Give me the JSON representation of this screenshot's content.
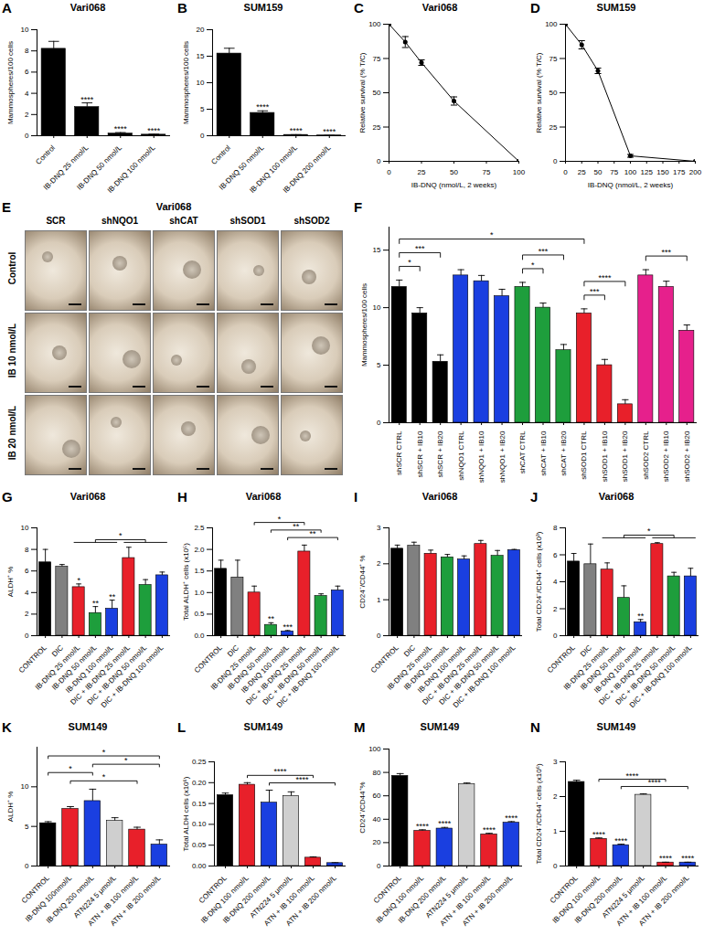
{
  "chart_data": [
    {
      "panel": "A",
      "type": "bar",
      "title": "Vari068",
      "y_label": "Mammospheres/100 cells",
      "categories": [
        "Control",
        "IB-DNQ 25 nmol/L",
        "IB-DNQ 50 nmol/L",
        "IB-DNQ 100 nmol/L"
      ],
      "values": [
        8.2,
        2.7,
        0.2,
        0.1
      ],
      "errors": [
        0.7,
        0.4,
        0.1,
        0.05
      ],
      "colors": [
        "#000000",
        "#000000",
        "#000000",
        "#000000"
      ],
      "stars": [
        null,
        "****",
        "****",
        "****"
      ],
      "ylim": [
        0,
        10
      ],
      "yticks": [
        0,
        2,
        4,
        6,
        8,
        10
      ]
    },
    {
      "panel": "B",
      "type": "bar",
      "title": "SUM159",
      "y_label": "Mammospheres/100 cells",
      "categories": [
        "Control",
        "IB-DNQ 50 nmol/L",
        "IB-DNQ 100 nmol/L",
        "IB-DNQ 200 nmol/L"
      ],
      "values": [
        15.5,
        4.3,
        0.15,
        0.05
      ],
      "errors": [
        1.0,
        0.4,
        0.05,
        0.03
      ],
      "colors": [
        "#000000",
        "#000000",
        "#000000",
        "#000000"
      ],
      "stars": [
        null,
        "****",
        "****",
        "****"
      ],
      "ylim": [
        0,
        20
      ],
      "yticks": [
        0,
        5,
        10,
        15,
        20
      ]
    },
    {
      "panel": "C",
      "type": "line",
      "title": "Vari068",
      "x_label": "IB-DNQ (nmol/L, 2 weeks)",
      "y_label": "Relative survival (% T/C)",
      "x": [
        0,
        12.5,
        25,
        50,
        100
      ],
      "values": [
        100,
        87,
        72,
        44,
        0
      ],
      "errors": [
        0,
        4,
        2,
        3,
        0
      ],
      "color": "#000000",
      "marker": "circle",
      "xlim": [
        0,
        100
      ],
      "xticks": [
        0,
        25,
        50,
        75,
        100
      ],
      "ylim": [
        0,
        100
      ],
      "yticks": [
        0,
        25,
        50,
        75,
        100
      ]
    },
    {
      "panel": "D",
      "type": "line",
      "title": "SUM159",
      "x_label": "IB-DNQ (nmol/L, 2 weeks)",
      "y_label": "Relative survival (% T/C)",
      "x": [
        0,
        25,
        50,
        100,
        200
      ],
      "values": [
        100,
        85,
        66,
        4,
        0
      ],
      "errors": [
        0,
        3,
        2,
        1,
        0
      ],
      "color": "#000000",
      "marker": "circle",
      "xlim": [
        0,
        200
      ],
      "xticks": [
        0,
        25,
        50,
        75,
        100,
        125,
        150,
        175,
        200
      ],
      "ylim": [
        0,
        100
      ],
      "yticks": [
        0,
        25,
        50,
        75,
        100
      ]
    },
    {
      "panel": "F",
      "type": "bar",
      "y_label": "Mammospheres/100 cells",
      "categories": [
        "shSCR CTRL",
        "shSCR + IB10",
        "shSCR + IB20",
        "shNQO1 CTRL",
        "shNQO1 + IB10",
        "shNQO1 + IB20",
        "shCAT CTRL",
        "shCAT + IB10",
        "shCAT + IB20",
        "shSOD1 CTRL",
        "shSOD1 + IB10",
        "shSOD1 + IB20",
        "shSOD2 CTRL",
        "shSOD2 + IB10",
        "shSOD2 + IB20"
      ],
      "values": [
        11.8,
        9.5,
        5.3,
        12.8,
        12.3,
        11.0,
        11.8,
        10.0,
        6.3,
        9.5,
        5.0,
        1.6,
        12.8,
        11.8,
        8.0
      ],
      "errors": [
        0.6,
        0.5,
        0.6,
        0.5,
        0.5,
        0.6,
        0.4,
        0.4,
        0.5,
        0.4,
        0.5,
        0.4,
        0.5,
        0.5,
        0.5
      ],
      "colors": [
        "#000000",
        "#000000",
        "#000000",
        "#1a3fe0",
        "#1a3fe0",
        "#1a3fe0",
        "#1e9e3c",
        "#1e9e3c",
        "#1e9e3c",
        "#e8202a",
        "#e8202a",
        "#e8202a",
        "#e6208c",
        "#e6208c",
        "#e6208c"
      ],
      "brackets": [
        {
          "from": "shSCR CTRL",
          "to": "shSCR + IB10",
          "label": "*"
        },
        {
          "from": "shSCR CTRL",
          "to": "shSCR + IB20",
          "label": "***"
        },
        {
          "from": "shCAT CTRL",
          "to": "shCAT + IB10",
          "label": "*"
        },
        {
          "from": "shCAT CTRL",
          "to": "shCAT + IB20",
          "label": "***"
        },
        {
          "from": "shSOD1 CTRL",
          "to": "shSOD1 + IB10",
          "label": "***"
        },
        {
          "from": "shSOD1 CTRL",
          "to": "shSOD1 + IB20",
          "label": "****"
        },
        {
          "from": "shSOD2 CTRL",
          "to": "shSOD2 + IB20",
          "label": "***"
        },
        {
          "from": "shSCR CTRL",
          "to": "shSOD1 CTRL",
          "label": "*"
        }
      ],
      "ylim": [
        0,
        17
      ],
      "yticks": [
        0,
        5,
        10,
        15
      ]
    },
    {
      "panel": "G",
      "type": "bar",
      "title": "Vari068",
      "y_label": "ALDH⁺ %",
      "categories": [
        "CONTROL",
        "DIC",
        "IB-DNQ 25 nmol/L",
        "IB-DNQ 50 nmol/L",
        "IB-DNQ 100 nmol/L",
        "DIC + IB-DNQ 25 nmol/L",
        "DIC + IB-DNQ 50 nmol/L",
        "DIC + IB-DNQ 100 nmol/L"
      ],
      "values": [
        6.8,
        6.4,
        4.5,
        2.1,
        2.5,
        7.2,
        4.7,
        5.6
      ],
      "errors": [
        1.2,
        0.2,
        0.3,
        0.6,
        0.8,
        1.0,
        0.5,
        0.3
      ],
      "colors": [
        "#000000",
        "#808080",
        "#e8202a",
        "#1e9e3c",
        "#1a3fe0",
        "#e8202a",
        "#1e9e3c",
        "#1a3fe0"
      ],
      "stars": [
        null,
        null,
        "*",
        "**",
        "**",
        null,
        null,
        null
      ],
      "brackets": [
        {
          "from": [
            "IB-DNQ 25 nmol/L",
            "IB-DNQ 50 nmol/L",
            "IB-DNQ 100 nmol/L"
          ],
          "to": [
            "DIC + IB-DNQ 25 nmol/L",
            "DIC + IB-DNQ 50 nmol/L",
            "DIC + IB-DNQ 100 nmol/L"
          ],
          "label": "*"
        }
      ],
      "ylim": [
        0,
        10
      ],
      "yticks": [
        0,
        2,
        4,
        6,
        8,
        10
      ]
    },
    {
      "panel": "H",
      "type": "bar",
      "title": "Vari068",
      "y_label": "Total ALDH⁺ cells (x10⁵)",
      "categories": [
        "CONTROL",
        "DIC",
        "IB-DNQ 25 nmol/L",
        "IB-DNQ 50 nmol/L",
        "IB-DNQ 100 nmol/L",
        "DIC + IB-DNQ 25 nmol/L",
        "DIC + IB-DNQ 50 nmol/L",
        "DIC + IB-DNQ 100 nmol/L"
      ],
      "values": [
        1.55,
        1.35,
        1.0,
        0.25,
        0.1,
        1.95,
        0.92,
        1.05
      ],
      "errors": [
        0.2,
        0.4,
        0.15,
        0.05,
        0.02,
        0.15,
        0.05,
        0.1
      ],
      "colors": [
        "#000000",
        "#808080",
        "#e8202a",
        "#1e9e3c",
        "#1a3fe0",
        "#e8202a",
        "#1e9e3c",
        "#1a3fe0"
      ],
      "stars": [
        null,
        null,
        null,
        "**",
        "***",
        null,
        null,
        null
      ],
      "brackets": [
        {
          "from": "IB-DNQ 100 nmol/L",
          "to": "DIC + IB-DNQ 100 nmol/L",
          "label": "**"
        },
        {
          "from": "IB-DNQ 50 nmol/L",
          "to": "DIC + IB-DNQ 50 nmol/L",
          "label": "**"
        },
        {
          "from": "IB-DNQ 25 nmol/L",
          "to": "DIC + IB-DNQ 25 nmol/L",
          "label": "*"
        }
      ],
      "ylim": [
        0,
        2.5
      ],
      "yticks": [
        {
          "value": 0,
          "label": "0.0"
        },
        0.5,
        {
          "value": 1,
          "label": "1.0"
        },
        1.5,
        {
          "value": 2,
          "label": "2.0"
        },
        2.5
      ]
    },
    {
      "panel": "I",
      "type": "bar",
      "title": "Vari068",
      "y_label": "CD24⁻/CD44⁺ %",
      "categories": [
        "CONTROL",
        "DIC",
        "IB-DNQ 25 nmol/L",
        "IB-DNQ 50 nmol/L",
        "IB-DNQ 100 nmol/L",
        "DIC + IB-DNQ 25 nmol/L",
        "DIC + IB-DNQ 50 nmol/L",
        "DIC + IB-DNQ 100 nmol/L"
      ],
      "values": [
        2.42,
        2.5,
        2.28,
        2.18,
        2.12,
        2.55,
        2.22,
        2.38
      ],
      "errors": [
        0.1,
        0.1,
        0.1,
        0.08,
        0.1,
        0.1,
        0.15,
        0.02
      ],
      "colors": [
        "#000000",
        "#808080",
        "#e8202a",
        "#1e9e3c",
        "#1a3fe0",
        "#e8202a",
        "#1e9e3c",
        "#1a3fe0"
      ],
      "ylim": [
        0,
        3
      ],
      "yticks": [
        0,
        1,
        2,
        3
      ]
    },
    {
      "panel": "J",
      "type": "bar",
      "title": "Vari068",
      "y_label": "Total CD24⁻/CD44⁺ cells (x10³)",
      "categories": [
        "CONTROL",
        "DIC",
        "IB-DNQ 25 nmol/L",
        "IB-DNQ 50 nmol/L",
        "IB-DNQ 100 nmol/L",
        "DIC + IB-DNQ 25 nmol/L",
        "DIC + IB-DNQ 50 nmol/L",
        "DIC + IB-DNQ 100 nmol/L"
      ],
      "values": [
        5.5,
        5.3,
        4.9,
        2.8,
        1.0,
        6.8,
        4.4,
        4.4
      ],
      "errors": [
        0.6,
        1.5,
        0.5,
        0.9,
        0.2,
        0.1,
        0.3,
        0.6
      ],
      "colors": [
        "#000000",
        "#808080",
        "#e8202a",
        "#1e9e3c",
        "#1a3fe0",
        "#e8202a",
        "#1e9e3c",
        "#1a3fe0"
      ],
      "stars": [
        null,
        null,
        null,
        null,
        "**",
        null,
        null,
        null
      ],
      "brackets": [
        {
          "from": [
            "IB-DNQ 25 nmol/L",
            "IB-DNQ 50 nmol/L",
            "IB-DNQ 100 nmol/L"
          ],
          "to": [
            "DIC + IB-DNQ 25 nmol/L",
            "DIC + IB-DNQ 50 nmol/L",
            "DIC + IB-DNQ 100 nmol/L"
          ],
          "label": "*"
        }
      ],
      "ylim": [
        0,
        8
      ],
      "yticks": [
        0,
        2,
        4,
        6,
        8
      ]
    },
    {
      "panel": "K",
      "type": "bar",
      "title": "SUM149",
      "y_label": "ALDH⁺ %",
      "categories": [
        "CONTROL",
        "IB-DNQ 100nmol/L",
        "IB-DNQ 200 nmol/L",
        "ATN224 5 μmol/L",
        "ATN + IB 100 nmol/L",
        "ATN + IB 200 nmol/L"
      ],
      "values": [
        5.4,
        7.2,
        8.2,
        5.7,
        4.6,
        2.7
      ],
      "errors": [
        0.2,
        0.3,
        1.5,
        0.4,
        0.3,
        0.6
      ],
      "colors": [
        "#000000",
        "#e8202a",
        "#1a3fe0",
        "#cfcfcf",
        "#e8202a",
        "#1a3fe0"
      ],
      "brackets": [
        {
          "from": "IB-DNQ 100nmol/L",
          "to": "ATN + IB 100 nmol/L",
          "label": "*"
        },
        {
          "from": "CONTROL",
          "to": "IB-DNQ 200 nmol/L",
          "label": "*"
        },
        {
          "from": "IB-DNQ 200 nmol/L",
          "to": "ATN + IB 200 nmol/L",
          "label": "*"
        },
        {
          "from": "CONTROL",
          "to": "ATN + IB 200 nmol/L",
          "label": "*"
        }
      ],
      "ylim": [
        0,
        15
      ],
      "yticks": [
        0,
        5,
        10
      ]
    },
    {
      "panel": "L",
      "type": "bar",
      "title": "SUM149",
      "y_label": "Total ALDH cells (x10⁶)",
      "categories": [
        "CONTROL",
        "IB-DNQ 100 nmol/L",
        "IB-DNQ 200 nmol/L",
        "ATN224 5 μmol/L",
        "ATN + IB 100 nmol/L",
        "ATN + IB 200 nmol/L"
      ],
      "values": [
        0.17,
        0.195,
        0.152,
        0.168,
        0.02,
        0.007
      ],
      "errors": [
        0.005,
        0.005,
        0.03,
        0.01,
        0.002,
        0.001
      ],
      "colors": [
        "#000000",
        "#e8202a",
        "#1a3fe0",
        "#cfcfcf",
        "#e8202a",
        "#1a3fe0"
      ],
      "brackets": [
        {
          "from": "IB-DNQ 200 nmol/L",
          "to": "ATN + IB 200 nmol/L",
          "label": "****"
        },
        {
          "from": "IB-DNQ 100 nmol/L",
          "to": "ATN + IB 100 nmol/L",
          "label": "****"
        }
      ],
      "ylim": [
        0,
        0.25
      ],
      "yticks": [
        {
          "value": 0,
          "label": "0.00"
        },
        0.05,
        {
          "value": 0.1,
          "label": "0.10"
        },
        0.15,
        {
          "value": 0.2,
          "label": "0.20"
        },
        0.25
      ]
    },
    {
      "panel": "M",
      "type": "bar",
      "title": "SUM149",
      "y_label": "CD24⁻/CD44⁺%",
      "categories": [
        "CONTROL",
        "IB-DNQ 100 nmol/L",
        "IB-DNQ 200 nmol/L",
        "ATN224 5 μmol/L",
        "ATN + IB 100 nmol/L",
        "ATN + IB 200 nmol/L"
      ],
      "values": [
        77,
        30,
        32,
        70,
        27,
        37
      ],
      "errors": [
        2,
        1,
        1,
        1,
        1,
        1
      ],
      "colors": [
        "#000000",
        "#e8202a",
        "#1a3fe0",
        "#cfcfcf",
        "#e8202a",
        "#1a3fe0"
      ],
      "stars": [
        null,
        "****",
        "****",
        null,
        "****",
        "****"
      ],
      "ylim": [
        0,
        100
      ],
      "yticks": [
        0,
        20,
        40,
        60,
        80,
        100
      ]
    },
    {
      "panel": "N",
      "type": "bar",
      "title": "SUM149",
      "y_label": "Total CD24⁻/CD44⁺ cells (x10⁶)",
      "categories": [
        "CONTROL",
        "IB-DNQ 100 nmol/L",
        "IB-DNQ 200 nmol/L",
        "ATN224 5 μmol/L",
        "ATN + IB 100 nmol/L",
        "ATN + IB 200 nmol/L"
      ],
      "values": [
        2.42,
        0.78,
        0.6,
        2.05,
        0.1,
        0.1
      ],
      "errors": [
        0.05,
        0.03,
        0.03,
        0.03,
        0.01,
        0.01
      ],
      "colors": [
        "#000000",
        "#e8202a",
        "#1a3fe0",
        "#cfcfcf",
        "#e8202a",
        "#1a3fe0"
      ],
      "stars": [
        null,
        "****",
        "****",
        null,
        "****",
        "****"
      ],
      "brackets": [
        {
          "from": "IB-DNQ 200 nmol/L",
          "to": "ATN + IB 200 nmol/L",
          "label": "****"
        },
        {
          "from": "IB-DNQ 100 nmol/L",
          "to": "ATN + IB 100 nmol/L",
          "label": "****"
        }
      ],
      "ylim": [
        0,
        3
      ],
      "yticks": [
        0,
        1,
        2,
        3
      ]
    }
  ],
  "image_panel": {
    "panel": "E",
    "title": "Vari068",
    "columns": [
      "SCR",
      "shNQO1",
      "shCAT",
      "shSOD1",
      "shSOD2"
    ],
    "rows": [
      "Control",
      "IB 10 nmol/L",
      "IB 20 nmol/L"
    ]
  }
}
